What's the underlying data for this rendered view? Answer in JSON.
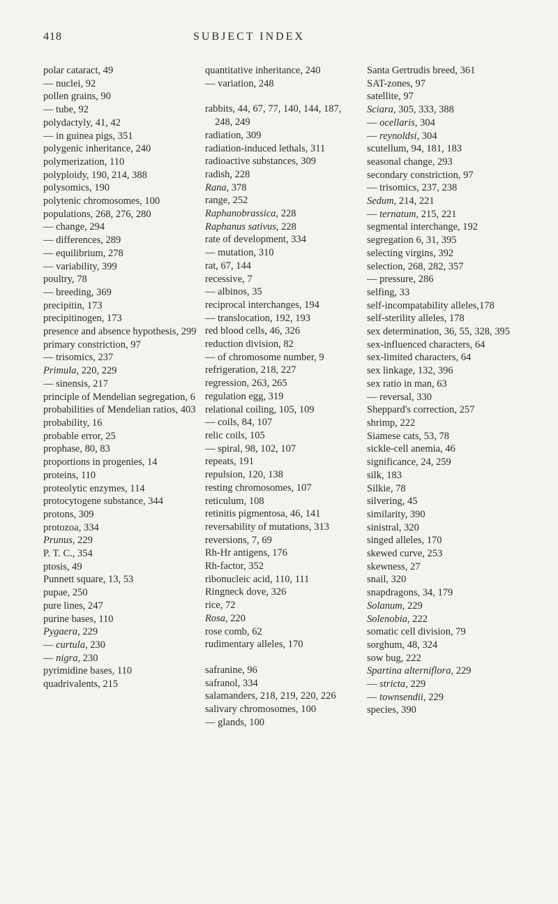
{
  "header": {
    "page_number": "418",
    "title": "SUBJECT INDEX"
  },
  "columns": [
    {
      "entries": [
        {
          "text": "polar cataract, 49"
        },
        {
          "text": "— nuclei, 92"
        },
        {
          "text": "pollen grains, 90"
        },
        {
          "text": "— tube, 92"
        },
        {
          "text": "polydactyly, 41, 42"
        },
        {
          "text": "— in guinea pigs, 351"
        },
        {
          "text": "polygenic inheritance, 240"
        },
        {
          "text": "polymerization, 110"
        },
        {
          "text": "polyploidy, 190, 214, 388"
        },
        {
          "text": "polysomics, 190"
        },
        {
          "text": "polytenic chromosomes, 100"
        },
        {
          "text": "populations, 268, 276, 280"
        },
        {
          "text": "— change, 294"
        },
        {
          "text": "— differences, 289"
        },
        {
          "text": "— equilibrium, 278"
        },
        {
          "text": "— variability, 399"
        },
        {
          "text": "poultry, 78"
        },
        {
          "text": "— breeding, 369"
        },
        {
          "text": "precipitin, 173"
        },
        {
          "text": "precipitinogen, 173"
        },
        {
          "text": "presence and absence hypothesis, 299"
        },
        {
          "text": "primary constriction, 97"
        },
        {
          "text": "— trisomics, 237"
        },
        {
          "html": "<span class='italic'>Primula</span>, 220, 229"
        },
        {
          "text": "— sinensis, 217"
        },
        {
          "text": "principle of Mendelian segregation, 6"
        },
        {
          "text": "probabilities of Mendelian ratios, 403"
        },
        {
          "text": "probability, 16"
        },
        {
          "text": "probable error, 25"
        },
        {
          "text": "prophase, 80, 83"
        },
        {
          "text": "proportions in progenies, 14"
        },
        {
          "text": "proteins, 110"
        },
        {
          "text": "proteolytic enzymes, 114"
        },
        {
          "text": "protocytogene substance, 344"
        },
        {
          "text": "protons, 309"
        },
        {
          "text": "protozoa, 334"
        },
        {
          "html": "<span class='italic'>Prunus</span>, 229"
        },
        {
          "text": "P. T. C., 354"
        },
        {
          "text": "ptosis, 49"
        },
        {
          "text": "Punnett square, 13, 53"
        },
        {
          "text": "pupae, 250"
        },
        {
          "text": "pure lines, 247"
        },
        {
          "text": "purine bases, 110"
        },
        {
          "html": "<span class='italic'>Pygaera</span>, 229"
        },
        {
          "html": "— <span class='italic'>curtula</span>, 230"
        },
        {
          "html": "— <span class='italic'>nigra</span>, 230"
        },
        {
          "text": "pyrimidine bases, 110"
        },
        {
          "text": "quadrivalents, 215"
        }
      ]
    },
    {
      "entries": [
        {
          "text": "quantitative inheritance, 240"
        },
        {
          "text": "— variation, 248"
        },
        {
          "spacer": true
        },
        {
          "text": "rabbits, 44, 67, 77, 140, 144, 187, 248, 249"
        },
        {
          "text": "radiation, 309"
        },
        {
          "text": "radiation-induced lethals, 311"
        },
        {
          "text": "radioactive substances, 309"
        },
        {
          "text": "radish, 228"
        },
        {
          "html": "<span class='italic'>Rana</span>, 378"
        },
        {
          "text": "range, 252"
        },
        {
          "html": "<span class='italic'>Raphanobrassica</span>, 228"
        },
        {
          "html": "<span class='italic'>Raphanus sativus</span>, 228"
        },
        {
          "text": "rate of development, 334"
        },
        {
          "text": "— mutation, 310"
        },
        {
          "text": "rat, 67, 144"
        },
        {
          "text": "recessive, 7"
        },
        {
          "text": "— albinos, 35"
        },
        {
          "text": "reciprocal interchanges, 194"
        },
        {
          "text": "— translocation, 192, 193"
        },
        {
          "text": "red blood cells, 46, 326"
        },
        {
          "text": "reduction division, 82"
        },
        {
          "text": "— of chromosome number, 9"
        },
        {
          "text": "refrigeration, 218, 227"
        },
        {
          "text": "regression, 263, 265"
        },
        {
          "text": "regulation egg, 319"
        },
        {
          "text": "relational coiling, 105, 109"
        },
        {
          "text": "— coils, 84, 107"
        },
        {
          "text": "relic coils, 105"
        },
        {
          "text": "— spiral, 98, 102, 107"
        },
        {
          "text": "repeats, 191"
        },
        {
          "text": "repulsion, 120, 138"
        },
        {
          "text": "resting chromosomes, 107"
        },
        {
          "text": "reticulum, 108"
        },
        {
          "text": "retinitis pigmentosa, 46, 141"
        },
        {
          "text": "reversability of mutations, 313"
        },
        {
          "text": "reversions, 7, 69"
        },
        {
          "text": "Rh-Hr antigens, 176"
        },
        {
          "text": "Rh-factor, 352"
        },
        {
          "text": "ribonucleic acid, 110, 111"
        },
        {
          "text": "Ringneck dove, 326"
        },
        {
          "text": "rice, 72"
        },
        {
          "html": "<span class='italic'>Rosa</span>, 220"
        },
        {
          "text": "rose comb, 62"
        },
        {
          "text": "rudimentary alleles, 170"
        },
        {
          "spacer": true
        },
        {
          "text": "safranine, 96"
        },
        {
          "text": "safranol, 334"
        },
        {
          "text": "salamanders, 218, 219, 220, 226"
        },
        {
          "text": "salivary chromosomes, 100"
        },
        {
          "text": "— glands, 100"
        }
      ]
    },
    {
      "entries": [
        {
          "text": "Santa Gertrudis breed, 361"
        },
        {
          "text": "SAT-zones, 97"
        },
        {
          "text": "satellite, 97"
        },
        {
          "html": "<span class='italic'>Sciara</span>, 305, 333, 388"
        },
        {
          "html": "— <span class='italic'>ocellaris</span>, 304"
        },
        {
          "html": "— <span class='italic'>reynoldsi</span>, 304"
        },
        {
          "text": "scutellum, 94, 181, 183"
        },
        {
          "text": "seasonal change, 293"
        },
        {
          "text": "secondary constriction, 97"
        },
        {
          "text": "— trisomics, 237, 238"
        },
        {
          "html": "<span class='italic'>Sedum</span>, 214, 221"
        },
        {
          "html": "— <span class='italic'>ternatum</span>, 215, 221"
        },
        {
          "text": "segmental interchange, 192"
        },
        {
          "text": "segregation 6, 31, 395"
        },
        {
          "text": "selecting virgins, 392"
        },
        {
          "text": "selection, 268, 282, 357"
        },
        {
          "text": "— pressure, 286"
        },
        {
          "text": "selfing, 33"
        },
        {
          "text": "self-incompatability alleles,178"
        },
        {
          "text": "self-sterility alleles, 178"
        },
        {
          "text": "sex determination, 36, 55, 328, 395"
        },
        {
          "text": "sex-influenced characters, 64"
        },
        {
          "text": "sex-limited characters, 64"
        },
        {
          "text": "sex linkage, 132, 396"
        },
        {
          "text": "sex ratio in man, 63"
        },
        {
          "text": "— reversal, 330"
        },
        {
          "text": "Sheppard's correction, 257"
        },
        {
          "text": "shrimp, 222"
        },
        {
          "text": "Siamese cats, 53, 78"
        },
        {
          "text": "sickle-cell anemia, 46"
        },
        {
          "text": "significance, 24, 259"
        },
        {
          "text": "silk, 183"
        },
        {
          "text": "Silkie, 78"
        },
        {
          "text": "silvering, 45"
        },
        {
          "text": "similarity, 390"
        },
        {
          "text": "sinistral, 320"
        },
        {
          "text": "singed alleles, 170"
        },
        {
          "text": "skewed curve, 253"
        },
        {
          "text": "skewness, 27"
        },
        {
          "text": "snail, 320"
        },
        {
          "text": "snapdragons, 34, 179"
        },
        {
          "html": "<span class='italic'>Solanum</span>, 229"
        },
        {
          "html": "<span class='italic'>Solenobia</span>, 222"
        },
        {
          "text": "somatic cell division, 79"
        },
        {
          "text": "sorghum, 48, 324"
        },
        {
          "text": "sow bug, 222"
        },
        {
          "html": "<span class='italic'>Spartina alterniflora</span>, 229"
        },
        {
          "html": "— <span class='italic'>stricta</span>, 229"
        },
        {
          "html": "— <span class='italic'>townsendii</span>, 229"
        },
        {
          "text": "species, 390"
        }
      ]
    }
  ]
}
